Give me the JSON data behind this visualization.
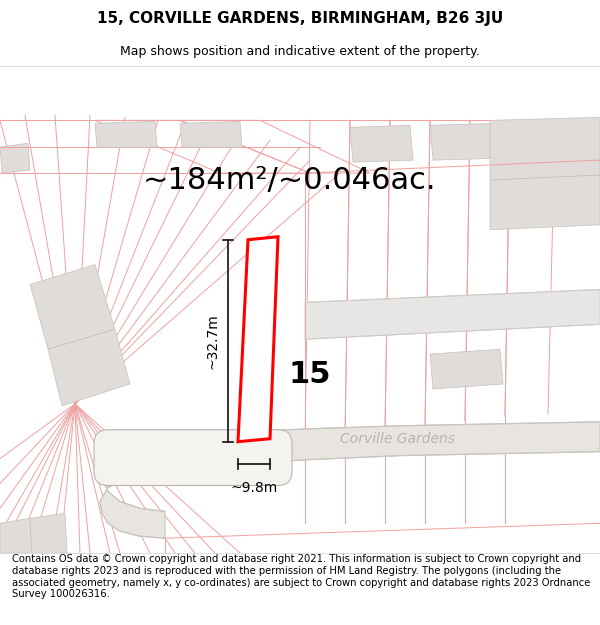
{
  "title": "15, CORVILLE GARDENS, BIRMINGHAM, B26 3JU",
  "subtitle": "Map shows position and indicative extent of the property.",
  "area_text": "~184m²/~0.046ac.",
  "width_label": "~9.8m",
  "height_label": "~32.7m",
  "number_label": "15",
  "footer_text": "Contains OS data © Crown copyright and database right 2021. This information is subject to Crown copyright and database rights 2023 and is reproduced with the permission of HM Land Registry. The polygons (including the associated geometry, namely x, y co-ordinates) are subject to Crown copyright and database rights 2023 Ordnance Survey 100026316.",
  "bg_color": "#ffffff",
  "map_bg_color": "#ffffff",
  "plot_outline_color": "#ff0000",
  "dim_line_color": "#111111",
  "ec_light": "#f0a0a0",
  "ec_road": "#c8c0b8",
  "fill_gray": "#e0dcda",
  "fill_light": "#f0eeec",
  "street_text_color": "#b8b4b0",
  "title_fontsize": 11,
  "subtitle_fontsize": 9,
  "area_fontsize": 22,
  "number_fontsize": 22,
  "dim_fontsize": 10,
  "footer_fontsize": 7.2
}
